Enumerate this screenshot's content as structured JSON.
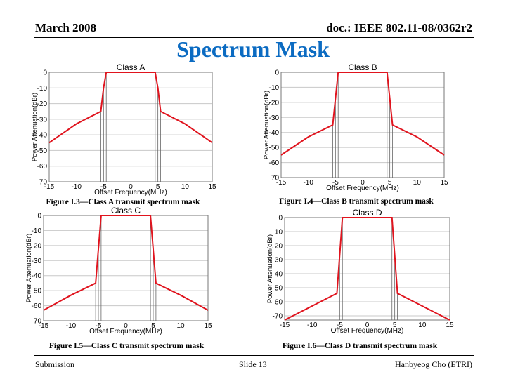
{
  "header": {
    "date": "March 2008",
    "doc": "doc.: IEEE 802.11-08/0362r2"
  },
  "title": "Spectrum Mask",
  "footer": {
    "left": "Submission",
    "center": "Slide 13",
    "right": "Hanbyeog Cho (ETRI)"
  },
  "colors": {
    "title": "#0b6bc2",
    "series": "#e0141e",
    "grid": "#c8c8c8"
  },
  "chart_data": [
    {
      "type": "line",
      "title": "Class A",
      "caption": "Figure I.3—Class A transmit spectrum mask",
      "xlabel": "Offset Frequency(MHz)",
      "ylabel": "Power Attenuation(dBr)",
      "xlim": [
        -15,
        15
      ],
      "ylim": [
        -70,
        0
      ],
      "xticks": [
        "-15",
        "-10",
        "-5",
        "0",
        "5",
        "10",
        "15"
      ],
      "yticks": [
        "0",
        "-10",
        "-20",
        "-30",
        "-40",
        "-50",
        "-60",
        "-70"
      ],
      "grid": true,
      "x": [
        -15,
        -10,
        -5.5,
        -5,
        -4.5,
        4.5,
        5,
        5.5,
        10,
        15
      ],
      "y": [
        -45,
        -33,
        -25,
        -10,
        0,
        0,
        -10,
        -25,
        -33,
        -45
      ],
      "markers": [
        -5.5,
        -5,
        -4.5,
        4.5,
        5,
        5.5
      ]
    },
    {
      "type": "line",
      "title": "Class B",
      "caption": "Figure I.4—Class B transmit spectrum mask",
      "xlabel": "Offset Frequency(MHz)",
      "ylabel": "Power Attenuation(dBr)",
      "xlim": [
        -15,
        15
      ],
      "ylim": [
        -70,
        0
      ],
      "xticks": [
        "-15",
        "-10",
        "-5",
        "0",
        "5",
        "10",
        "15"
      ],
      "yticks": [
        "0",
        "-10",
        "-20",
        "-30",
        "-40",
        "-50",
        "-60",
        "-70"
      ],
      "grid": true,
      "x": [
        -15,
        -10,
        -5.5,
        -4.5,
        4.5,
        5.5,
        10,
        15
      ],
      "y": [
        -55,
        -43,
        -35,
        0,
        0,
        -35,
        -43,
        -55
      ],
      "markers": [
        -5.5,
        -5,
        -4.5,
        4.5,
        5,
        5.5
      ]
    },
    {
      "type": "line",
      "title": "Class C",
      "caption": "Figure I.5—Class C transmit spectrum mask",
      "xlabel": "Offset Frequency(MHz)",
      "ylabel": "Power Attenuation(dBr)",
      "xlim": [
        -15,
        15
      ],
      "ylim": [
        -70,
        0
      ],
      "xticks": [
        "-15",
        "-10",
        "-5",
        "0",
        "5",
        "10",
        "15"
      ],
      "yticks": [
        "0",
        "-10",
        "-20",
        "-30",
        "-40",
        "-50",
        "-60",
        "-70"
      ],
      "grid": true,
      "x": [
        -15,
        -10,
        -5.5,
        -4.5,
        4.5,
        5.5,
        10,
        15
      ],
      "y": [
        -63,
        -53,
        -45,
        0,
        0,
        -45,
        -53,
        -63
      ],
      "markers": [
        -5.5,
        -5,
        -4.5,
        4.5,
        5,
        5.5
      ]
    },
    {
      "type": "line",
      "title": "Class D",
      "caption": "Figure I.6—Class D transmit spectrum mask",
      "xlabel": "Offset Frequency(MHz)",
      "ylabel": "Power Attenuation(dBr)",
      "xlim": [
        -15,
        15
      ],
      "ylim": [
        -73,
        0
      ],
      "xticks": [
        "-15",
        "-10",
        "-5",
        "0",
        "5",
        "10",
        "15"
      ],
      "yticks": [
        "0",
        "-10",
        "-20",
        "-30",
        "-40",
        "-50",
        "-60",
        "-70"
      ],
      "grid": true,
      "x": [
        -15,
        -10,
        -5.5,
        -4.5,
        4.5,
        5.5,
        10,
        15
      ],
      "y": [
        -73,
        -63,
        -54,
        0,
        0,
        -54,
        -63,
        -73
      ],
      "markers": [
        -5.5,
        -5,
        -4.5,
        4.5,
        5,
        5.5
      ]
    }
  ]
}
